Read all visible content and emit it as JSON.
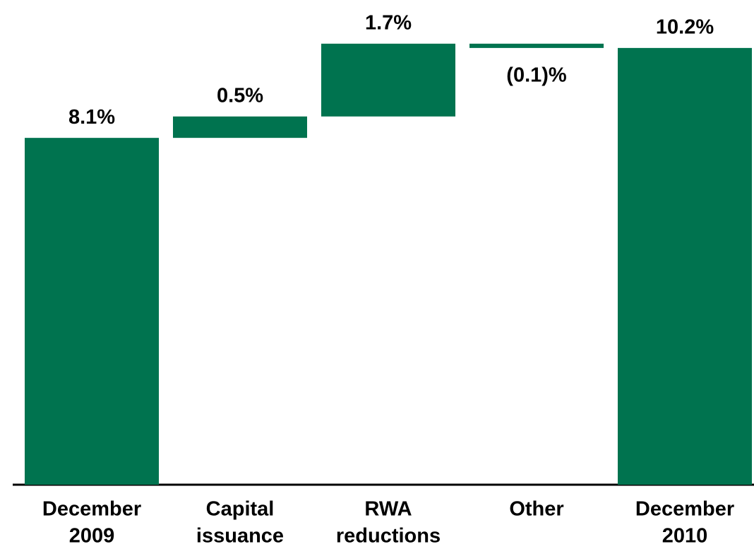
{
  "chart_data": {
    "type": "waterfall",
    "categories": [
      [
        "December",
        "2009"
      ],
      [
        "Capital",
        "issuance"
      ],
      [
        "RWA",
        "reductions"
      ],
      [
        "Other"
      ],
      [
        "December",
        "2010"
      ]
    ],
    "values": [
      8.1,
      0.5,
      1.7,
      -0.1,
      10.2
    ],
    "value_labels": [
      "8.1%",
      "0.5%",
      "1.7%",
      "(0.1)%",
      "10.2%"
    ],
    "color": "#00734f",
    "ylim": [
      0,
      11
    ]
  }
}
